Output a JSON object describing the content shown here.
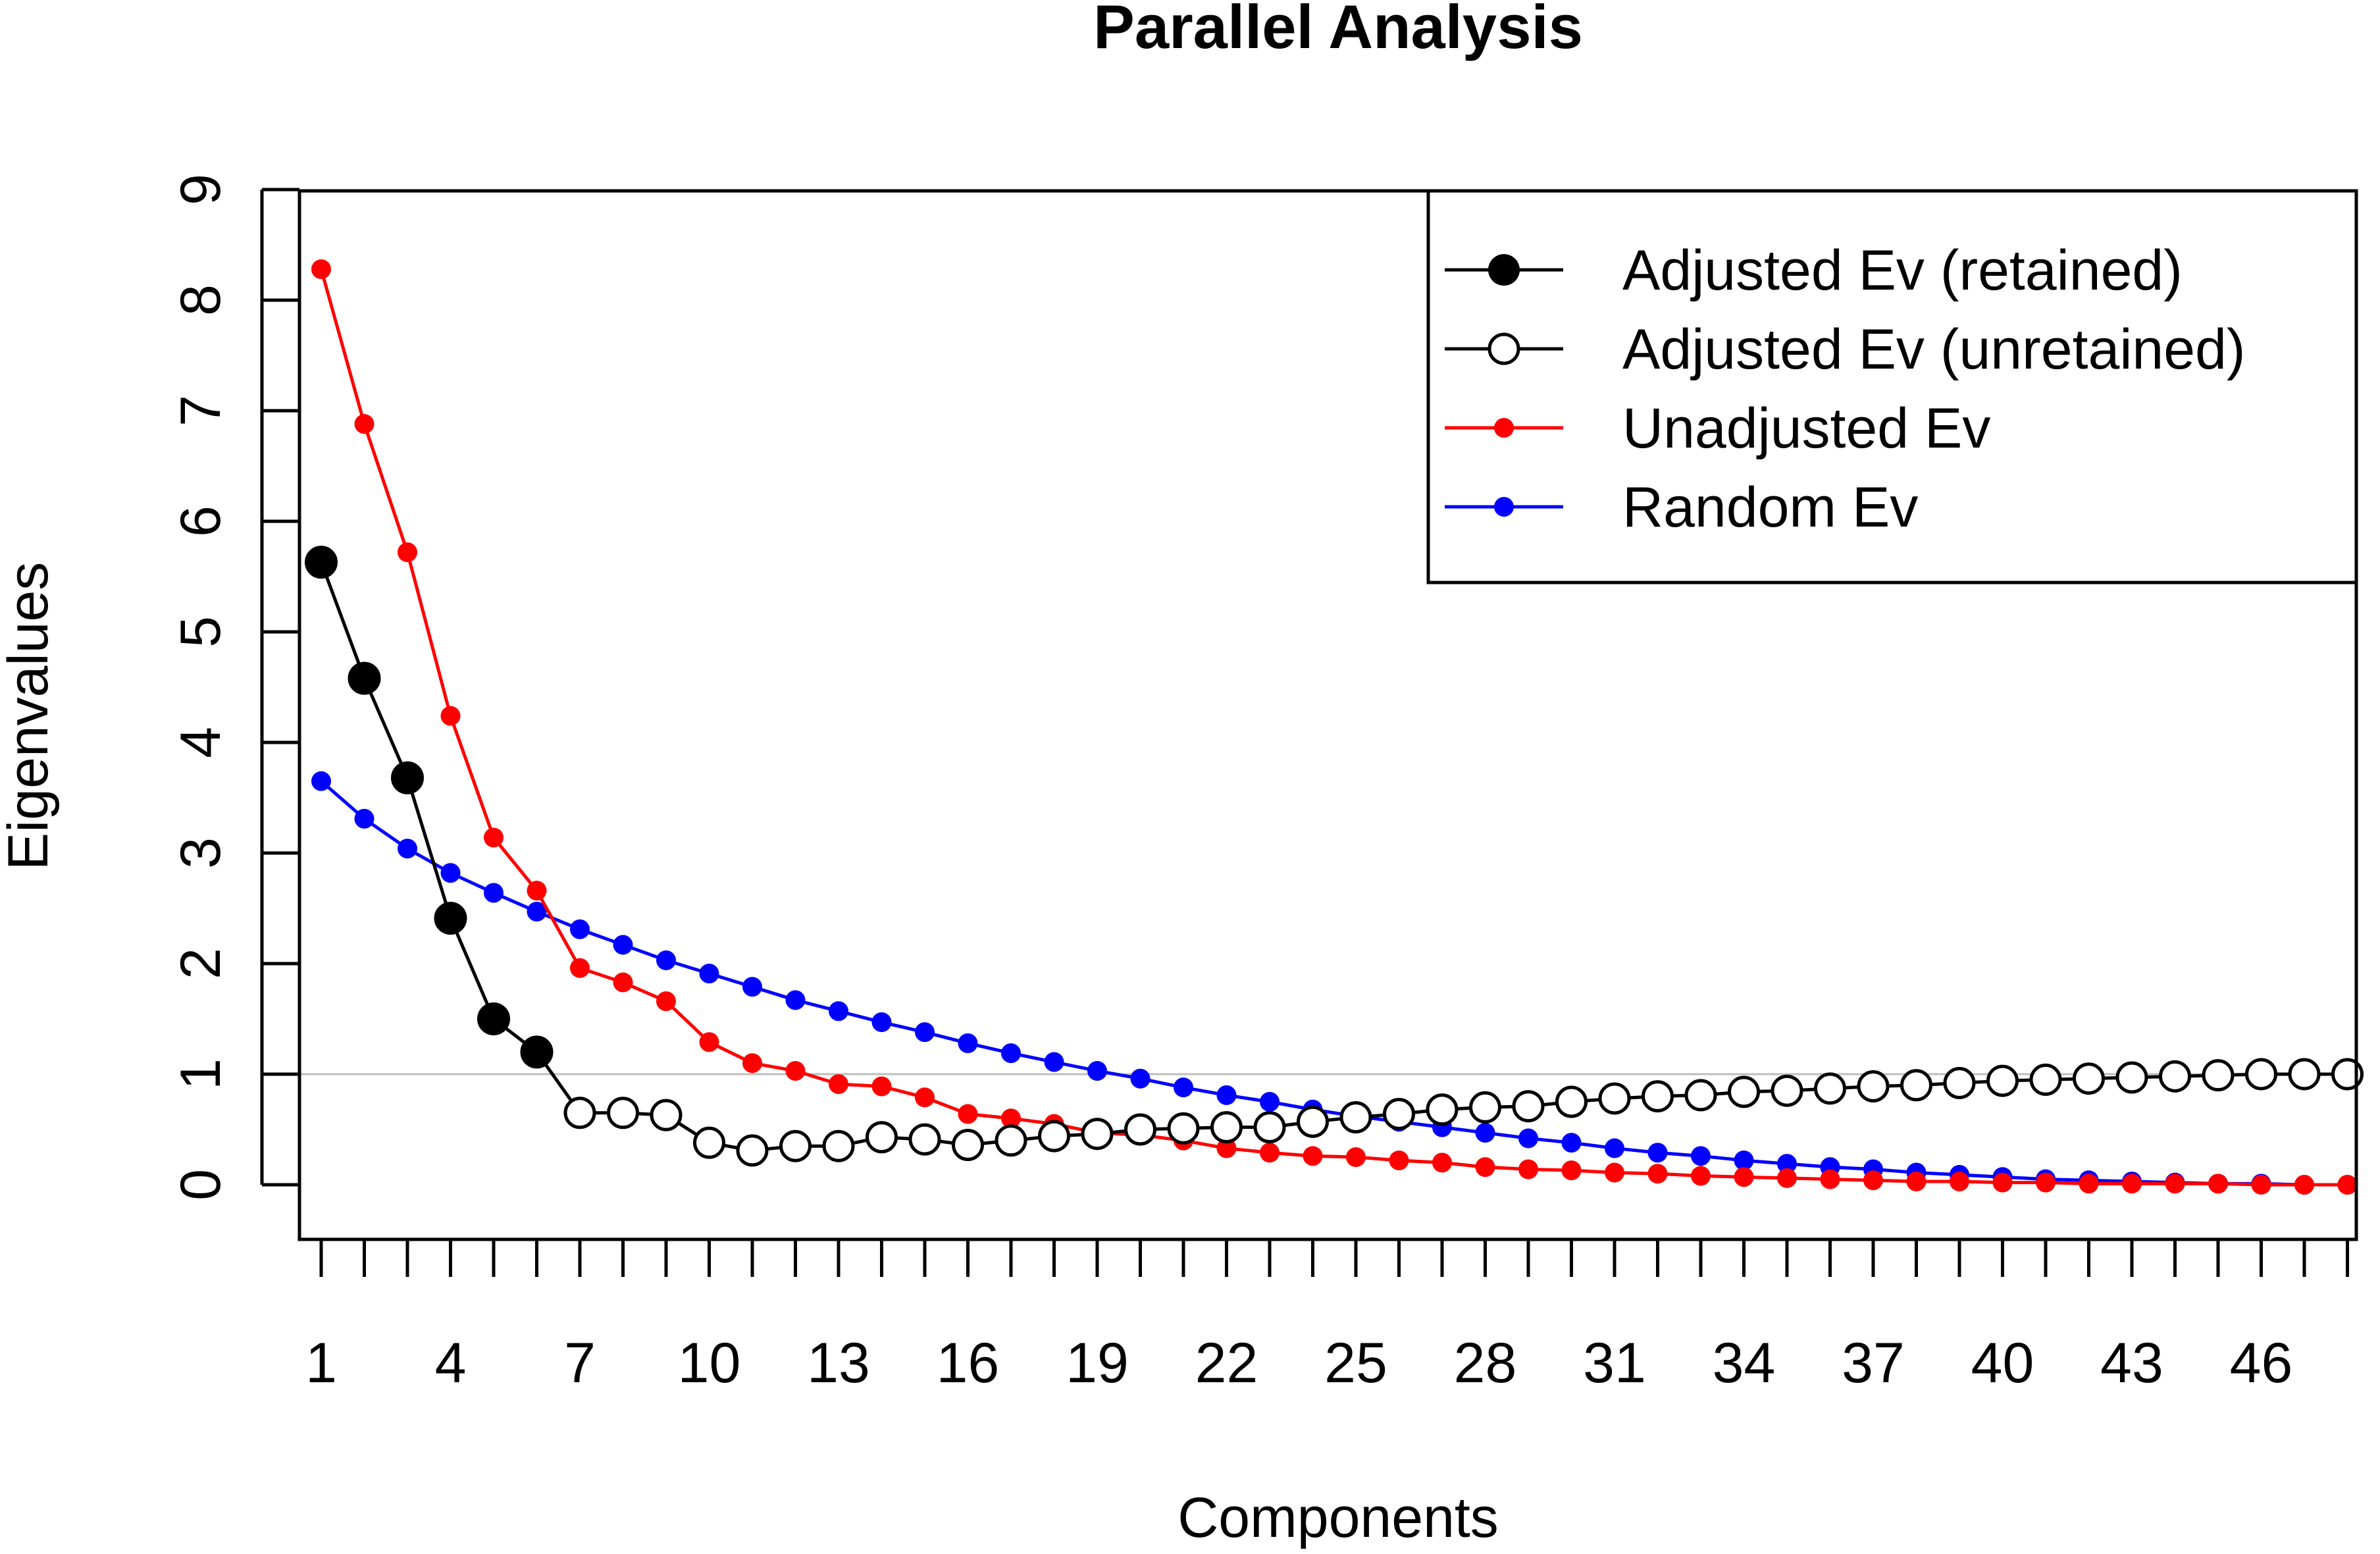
{
  "chart_data": {
    "type": "line",
    "title": "Parallel Analysis",
    "xlabel": "Components",
    "ylabel": "Eigenvalues",
    "xlim": [
      1,
      48
    ],
    "ylim": [
      0,
      9
    ],
    "x_tick_labels": [
      "1",
      "4",
      "7",
      "10",
      "13",
      "16",
      "19",
      "22",
      "25",
      "28",
      "31",
      "34",
      "37",
      "40",
      "43",
      "46"
    ],
    "x_tick_values": [
      1,
      4,
      7,
      10,
      13,
      16,
      19,
      22,
      25,
      28,
      31,
      34,
      37,
      40,
      43,
      46
    ],
    "y_tick_values": [
      0,
      1,
      2,
      3,
      4,
      5,
      6,
      7,
      8,
      9
    ],
    "reference_line": {
      "y": 1,
      "color": "#BEBEBE"
    },
    "legend_position": "top-right",
    "retained_count": 6,
    "x": [
      1,
      2,
      3,
      4,
      5,
      6,
      7,
      8,
      9,
      10,
      11,
      12,
      13,
      14,
      15,
      16,
      17,
      18,
      19,
      20,
      21,
      22,
      23,
      24,
      25,
      26,
      27,
      28,
      29,
      30,
      31,
      32,
      33,
      34,
      35,
      36,
      37,
      38,
      39,
      40,
      41,
      42,
      43,
      44,
      45,
      46,
      47,
      48
    ],
    "series": [
      {
        "name": "Adjusted Ev (retained)",
        "legend_label": "Adjusted Ev (retained)",
        "color": "#000000",
        "marker": "filled-circle-large",
        "values": [
          5.63,
          4.58,
          3.68,
          2.41,
          1.5,
          1.2,
          0.65,
          0.65,
          0.63,
          0.38,
          0.31,
          0.35,
          0.35,
          0.43,
          0.41,
          0.36,
          0.4,
          0.44,
          0.46,
          0.5,
          0.51,
          0.52,
          0.52,
          0.57,
          0.61,
          0.64,
          0.68,
          0.7,
          0.71,
          0.75,
          0.78,
          0.8,
          0.81,
          0.84,
          0.85,
          0.87,
          0.89,
          0.9,
          0.92,
          0.94,
          0.95,
          0.96,
          0.97,
          0.98,
          0.99,
          1.0,
          1.0,
          1.0
        ]
      },
      {
        "name": "Adjusted Ev (unretained)",
        "legend_label": "Adjusted Ev (unretained)",
        "color": "#000000",
        "marker": "open-circle-large"
      },
      {
        "name": "Unadjusted Ev",
        "legend_label": "Unadjusted Ev",
        "color": "#FF0000",
        "marker": "filled-circle-small",
        "values": [
          8.28,
          6.88,
          5.72,
          4.24,
          3.14,
          2.66,
          1.96,
          1.83,
          1.66,
          1.29,
          1.1,
          1.03,
          0.91,
          0.89,
          0.79,
          0.64,
          0.6,
          0.55,
          0.47,
          0.45,
          0.4,
          0.33,
          0.29,
          0.26,
          0.25,
          0.22,
          0.2,
          0.16,
          0.14,
          0.13,
          0.11,
          0.1,
          0.08,
          0.07,
          0.06,
          0.05,
          0.04,
          0.03,
          0.03,
          0.02,
          0.02,
          0.01,
          0.01,
          0.01,
          0.01,
          0.0,
          0.0,
          0.0
        ]
      },
      {
        "name": "Random Ev",
        "legend_label": "Random Ev",
        "color": "#0000FF",
        "marker": "filled-circle-small",
        "values": [
          3.65,
          3.31,
          3.04,
          2.82,
          2.64,
          2.47,
          2.31,
          2.17,
          2.03,
          1.91,
          1.79,
          1.67,
          1.57,
          1.47,
          1.38,
          1.28,
          1.19,
          1.11,
          1.03,
          0.96,
          0.88,
          0.81,
          0.75,
          0.68,
          0.62,
          0.57,
          0.52,
          0.47,
          0.42,
          0.38,
          0.33,
          0.29,
          0.26,
          0.22,
          0.19,
          0.16,
          0.14,
          0.11,
          0.09,
          0.07,
          0.05,
          0.04,
          0.03,
          0.02,
          0.01,
          0.01,
          0.0,
          0.0
        ]
      }
    ]
  }
}
